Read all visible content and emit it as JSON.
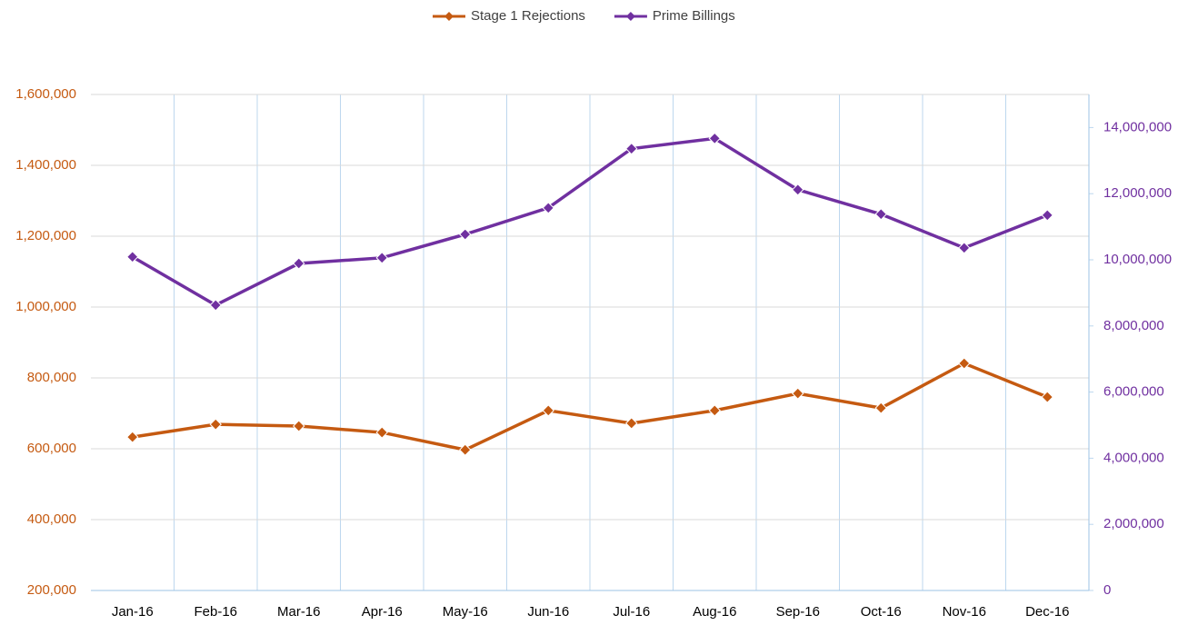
{
  "chart_data": {
    "type": "line",
    "categories": [
      "Jan-16",
      "Feb-16",
      "Mar-16",
      "Apr-16",
      "May-16",
      "Jun-16",
      "Jul-16",
      "Aug-16",
      "Sep-16",
      "Oct-16",
      "Nov-16",
      "Dec-16"
    ],
    "series": [
      {
        "name": "Stage 1 Rejections",
        "color": "#c55a11",
        "axis": "y",
        "values": [
          633000,
          669000,
          664000,
          646000,
          597000,
          708000,
          672000,
          708000,
          756000,
          715000,
          841000,
          746000
        ]
      },
      {
        "name": "Prime Billings",
        "color": "#7030a0",
        "axis": "y2",
        "values": [
          10090000,
          8630000,
          9890000,
          10060000,
          10770000,
          11570000,
          13360000,
          13670000,
          12120000,
          11380000,
          10360000,
          11350000
        ]
      }
    ],
    "ylim": [
      200000,
      1600000
    ],
    "yticks": [
      {
        "value": 200000,
        "label": "200,000"
      },
      {
        "value": 400000,
        "label": "400,000"
      },
      {
        "value": 600000,
        "label": "600,000"
      },
      {
        "value": 800000,
        "label": "800,000"
      },
      {
        "value": 1000000,
        "label": "1,000,000"
      },
      {
        "value": 1200000,
        "label": "1,200,000"
      },
      {
        "value": 1400000,
        "label": "1,400,000"
      },
      {
        "value": 1600000,
        "label": "1,600,000"
      }
    ],
    "y2lim": [
      0,
      15000000
    ],
    "y2ticks": [
      0,
      {
        "value": 2000000,
        "label": "2,000,000"
      },
      {
        "value": 4000000,
        "label": "4,000,000"
      },
      {
        "value": 6000000,
        "label": "6,000,000"
      },
      {
        "value": 8000000,
        "label": "8,000,000"
      },
      {
        "value": 10000000,
        "label": "10,000,000"
      },
      {
        "value": 12000000,
        "label": "12,000,000"
      },
      {
        "value": 14000000,
        "label": "14,000,000"
      }
    ],
    "grid": true,
    "legend": "top"
  }
}
